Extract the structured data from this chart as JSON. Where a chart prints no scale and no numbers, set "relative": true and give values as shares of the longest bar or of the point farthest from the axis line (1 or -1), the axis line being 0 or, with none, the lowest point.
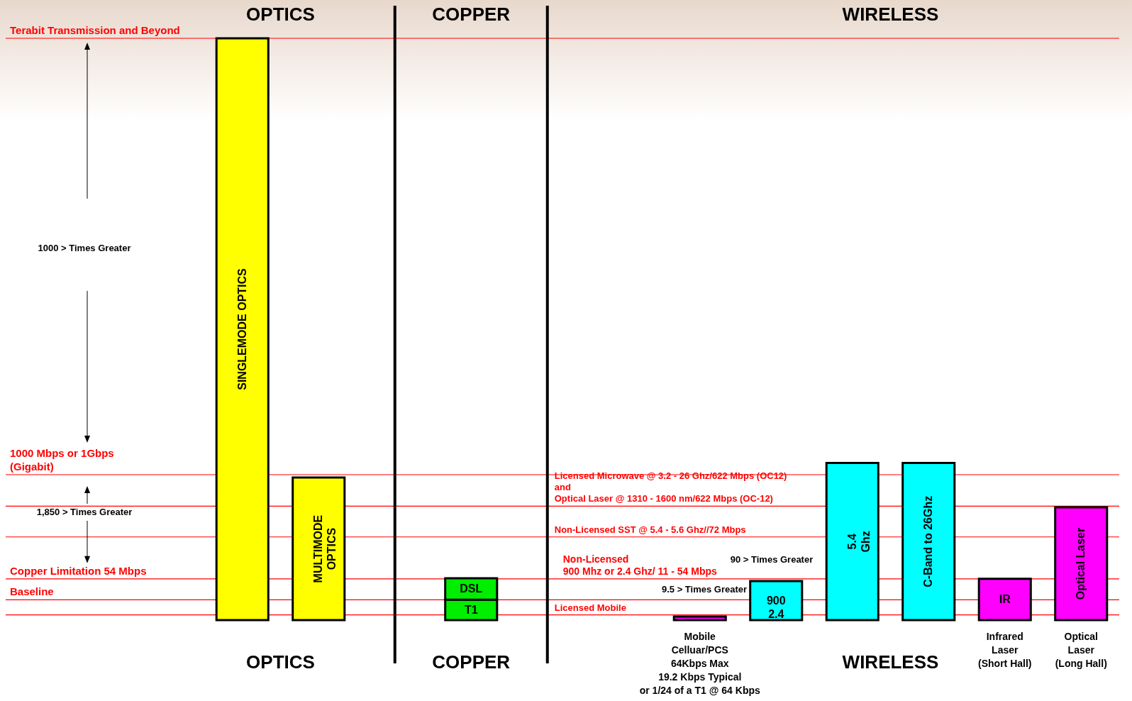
{
  "chart_data": {
    "type": "bar",
    "relative": true,
    "stacked": true,
    "categories": [
      null,
      null,
      null,
      null,
      null,
      null,
      "Mobile\nCelluar/PCS\n64Kbps Max\n19.2 Kbps  Typical\nor 1/24 of a T1 @ 64 Kbps",
      null,
      null,
      null,
      "Infrared\nLaser\n(Short Hall)",
      "Optical\nLaser\n(Long Hall)"
    ],
    "series": [
      {
        "name": "SINGLEMODE OPTICS",
        "color": "#ffff00",
        "values": [
          1.0,
          null,
          null,
          null,
          null,
          null,
          null,
          null,
          null,
          null,
          null,
          null
        ]
      },
      {
        "name": "MULTIMODE\nOPTICS",
        "color": "#ffff00",
        "values": [
          null,
          0.245,
          null,
          null,
          null,
          null,
          null,
          null,
          null,
          null,
          null,
          null
        ]
      },
      {
        "name": "T1",
        "color": "#00ee00",
        "values": [
          null,
          null,
          null,
          0.035,
          null,
          null,
          null,
          null,
          null,
          null,
          null,
          null
        ]
      },
      {
        "name": "DSL",
        "color": "#00ee00",
        "values": [
          null,
          null,
          null,
          0.037,
          null,
          null,
          null,
          null,
          null,
          null,
          null,
          null
        ]
      },
      {
        "color": "#ff00ff",
        "values": [
          null,
          null,
          null,
          null,
          null,
          null,
          0.006,
          null,
          null,
          null,
          null,
          null
        ]
      },
      {
        "name": "900\n2.4",
        "color": "#00ffff",
        "values": [
          null,
          null,
          null,
          null,
          null,
          null,
          null,
          0.067,
          null,
          null,
          null,
          null
        ]
      },
      {
        "name": "5.4\nGhz",
        "color": "#00ffff",
        "values": [
          null,
          null,
          null,
          null,
          null,
          null,
          null,
          null,
          0.27,
          null,
          null,
          null
        ]
      },
      {
        "name": "C-Band to 26Ghz",
        "color": "#00ffff",
        "values": [
          null,
          null,
          null,
          null,
          null,
          null,
          null,
          null,
          null,
          0.27,
          null,
          null
        ]
      },
      {
        "name": "IR",
        "color": "#ff00ff",
        "values": [
          null,
          null,
          null,
          null,
          null,
          null,
          null,
          null,
          null,
          null,
          0.071,
          null
        ]
      },
      {
        "name": "Optical Laser",
        "color": "#ff00ff",
        "values": [
          null,
          null,
          null,
          null,
          null,
          null,
          null,
          null,
          null,
          null,
          null,
          0.194
        ]
      }
    ],
    "ref_lines": [
      {
        "axis": "y",
        "value": 1.0,
        "label": "Terabit Transmission and Beyond",
        "color": "#ff0000"
      },
      {
        "axis": "y",
        "value": 0.25,
        "label": "1000 Mbps or 1Gbps\n(Gigabit)",
        "color": "#ff0000"
      },
      {
        "axis": "y",
        "value": 0.071,
        "label": "Copper Limitation 54 Mbps",
        "color": "#ff0000"
      },
      {
        "axis": "y",
        "value": 0.035,
        "label": "Baseline",
        "color": "#ff0000"
      },
      {
        "axis": "y",
        "value": 0.196,
        "label": "Licensed  Microwave @ 3.2 - 26 Ghz/622 Mbps (OC12)\nand\nOptical Laser @ 1310 - 1600 nm/622 Mbps (OC-12)",
        "color": "#ff0000"
      },
      {
        "axis": "y",
        "value": 0.143,
        "label": "Non-Licensed  SST @ 5.4 - 5.6 Ghz//72 Mbps",
        "color": "#ff0000"
      },
      {
        "axis": "y",
        "value": 0.009,
        "label": "Licensed Mobile",
        "color": "#ff0000"
      }
    ],
    "annotations": [
      "OPTICS",
      "COPPER",
      "WIRELESS",
      "OPTICS",
      "COPPER",
      "WIRELESS",
      "1000 >  Times Greater",
      "1,850 >  Times Greater",
      "90 >  Times Greater",
      "9.5 >  Times Greater",
      "Non-Licensed\n900 Mhz or 2.4 Ghz/ 11 - 54  Mbps"
    ]
  }
}
